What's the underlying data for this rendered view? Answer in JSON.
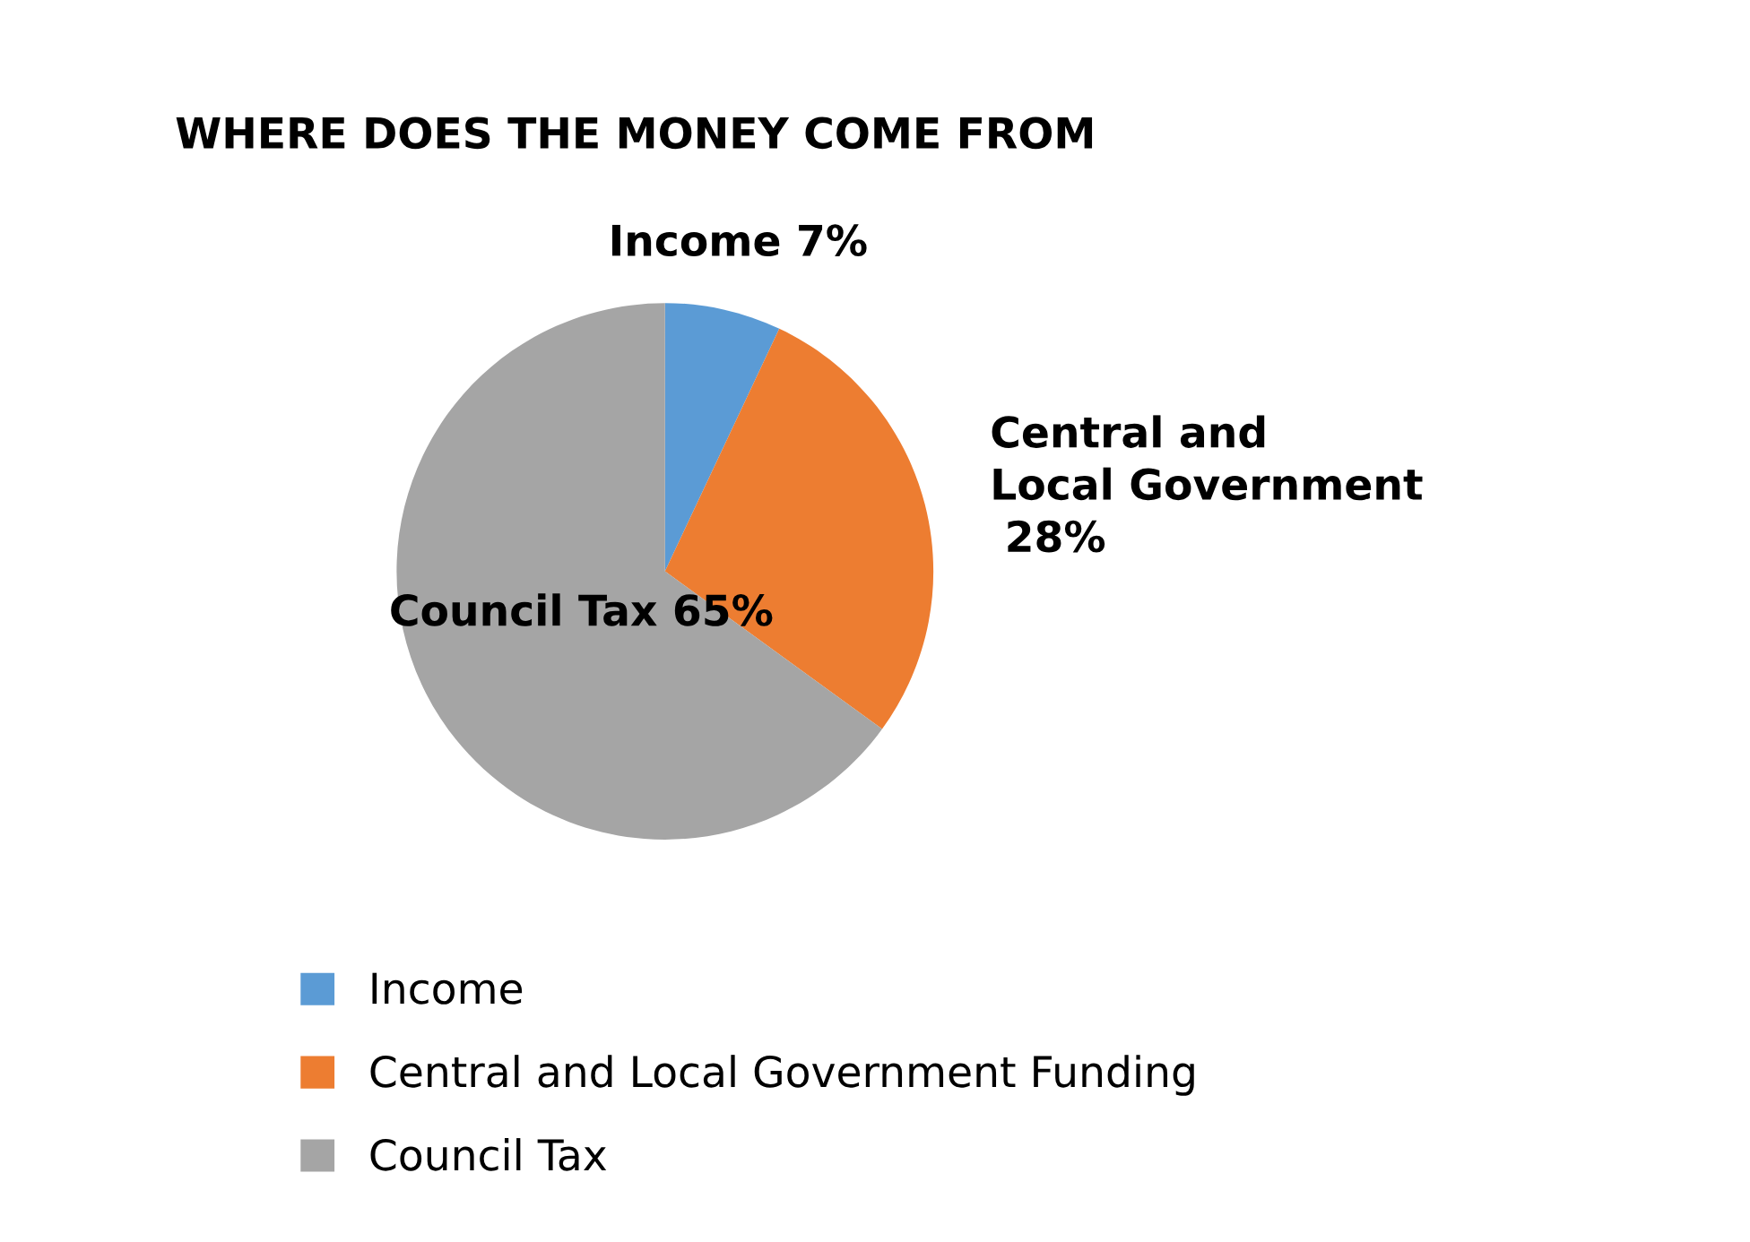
{
  "chart_data": {
    "type": "pie",
    "title": "WHERE DOES THE MONEY COME FROM",
    "categories": [
      "Income",
      "Central and Local Government Funding",
      "Council Tax"
    ],
    "values": [
      7,
      28,
      65
    ],
    "colors": [
      "#5b9bd5",
      "#ed7d31",
      "#a5a5a5"
    ],
    "value_labels": [
      "Income 7%",
      "Central and\nLocal Government\n 28%",
      "Council Tax 65%"
    ],
    "legend": "bottom"
  }
}
